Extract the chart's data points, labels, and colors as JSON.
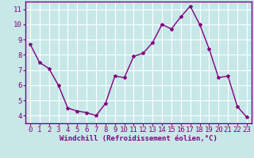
{
  "x": [
    0,
    1,
    2,
    3,
    4,
    5,
    6,
    7,
    8,
    9,
    10,
    11,
    12,
    13,
    14,
    15,
    16,
    17,
    18,
    19,
    20,
    21,
    22,
    23
  ],
  "y": [
    8.7,
    7.5,
    7.1,
    6.0,
    4.5,
    4.3,
    4.2,
    4.0,
    4.8,
    6.6,
    6.5,
    7.9,
    8.1,
    8.8,
    10.0,
    9.7,
    10.5,
    11.2,
    10.0,
    8.4,
    6.5,
    6.6,
    4.6,
    3.9
  ],
  "line_color": "#800080",
  "marker": "*",
  "marker_size": 3,
  "bg_color": "#c8e8e8",
  "grid_color": "#ffffff",
  "xlabel": "Windchill (Refroidissement éolien,°C)",
  "xlabel_fontsize": 6.5,
  "xlabel_color": "#800080",
  "tick_color": "#800080",
  "tick_fontsize": 6.5,
  "axis_bar_color": "#800080",
  "xlim": [
    -0.5,
    23.5
  ],
  "ylim": [
    3.5,
    11.5
  ],
  "yticks": [
    4,
    5,
    6,
    7,
    8,
    9,
    10,
    11
  ],
  "xticks": [
    0,
    1,
    2,
    3,
    4,
    5,
    6,
    7,
    8,
    9,
    10,
    11,
    12,
    13,
    14,
    15,
    16,
    17,
    18,
    19,
    20,
    21,
    22,
    23
  ]
}
